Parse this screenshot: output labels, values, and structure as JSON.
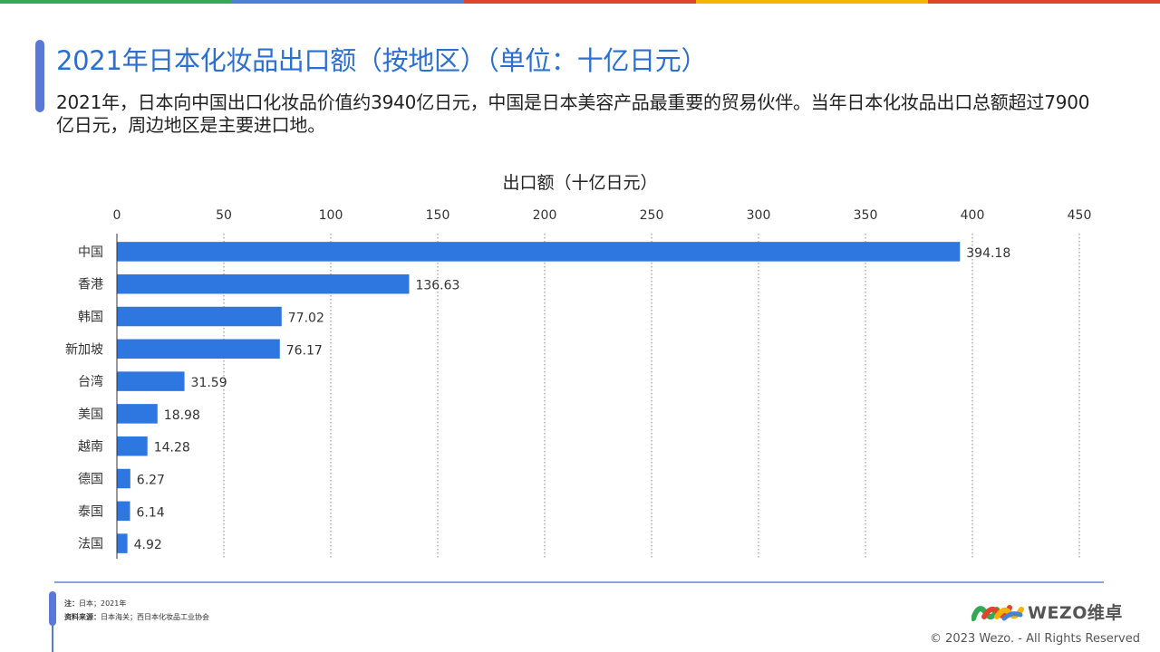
{
  "header": {
    "title": "2021年日本化妆品出口额（按地区）（单位：十亿日元）",
    "subtitle": "2021年，日本向中国出口化妆品价值约3940亿日元，中国是日本美容产品最重要的贸易伙伴。当年日本化妆品出口总额超过7900亿日元，周边地区是主要进口地。"
  },
  "colors": {
    "stripe": [
      "#34a853",
      "#4a7fd6",
      "#e0452b",
      "#f4b400",
      "#e0452b"
    ],
    "bar": "#2e76e0",
    "title": "#2b6fd1",
    "accent": "#5a79d6"
  },
  "chart_data": {
    "type": "bar",
    "orientation": "horizontal",
    "title": "出口额（十亿日元）",
    "categories": [
      "中国",
      "香港",
      "韩国",
      "新加坡",
      "台湾",
      "美国",
      "越南",
      "德国",
      "泰国",
      "法国"
    ],
    "values": [
      394.18,
      136.63,
      77.02,
      76.17,
      31.59,
      18.98,
      14.28,
      6.27,
      6.14,
      4.92
    ],
    "value_labels": [
      "394.18",
      "136.63",
      "77.02",
      "76.17",
      "31.59",
      "18.98",
      "14.28",
      "6.27",
      "6.14",
      "4.92"
    ],
    "xlim": [
      0,
      450
    ],
    "ticks": [
      0,
      50,
      100,
      150,
      200,
      250,
      300,
      350,
      400,
      450
    ],
    "tick_labels": [
      "0",
      "50",
      "100",
      "150",
      "200",
      "250",
      "300",
      "350",
      "400",
      "450"
    ],
    "axis_position": "top",
    "grid": "vertical dotted"
  },
  "footer": {
    "note_label": "注：",
    "note_text": "日本；2021年",
    "source_label": "资料来源：",
    "source_text": "日本海关；西日本化妆品工业协会",
    "logo_text": "WEZO维卓",
    "logo_icon": "wezo-logo-icon",
    "copyright": "© 2023 Wezo. - All Rights Reserved"
  }
}
